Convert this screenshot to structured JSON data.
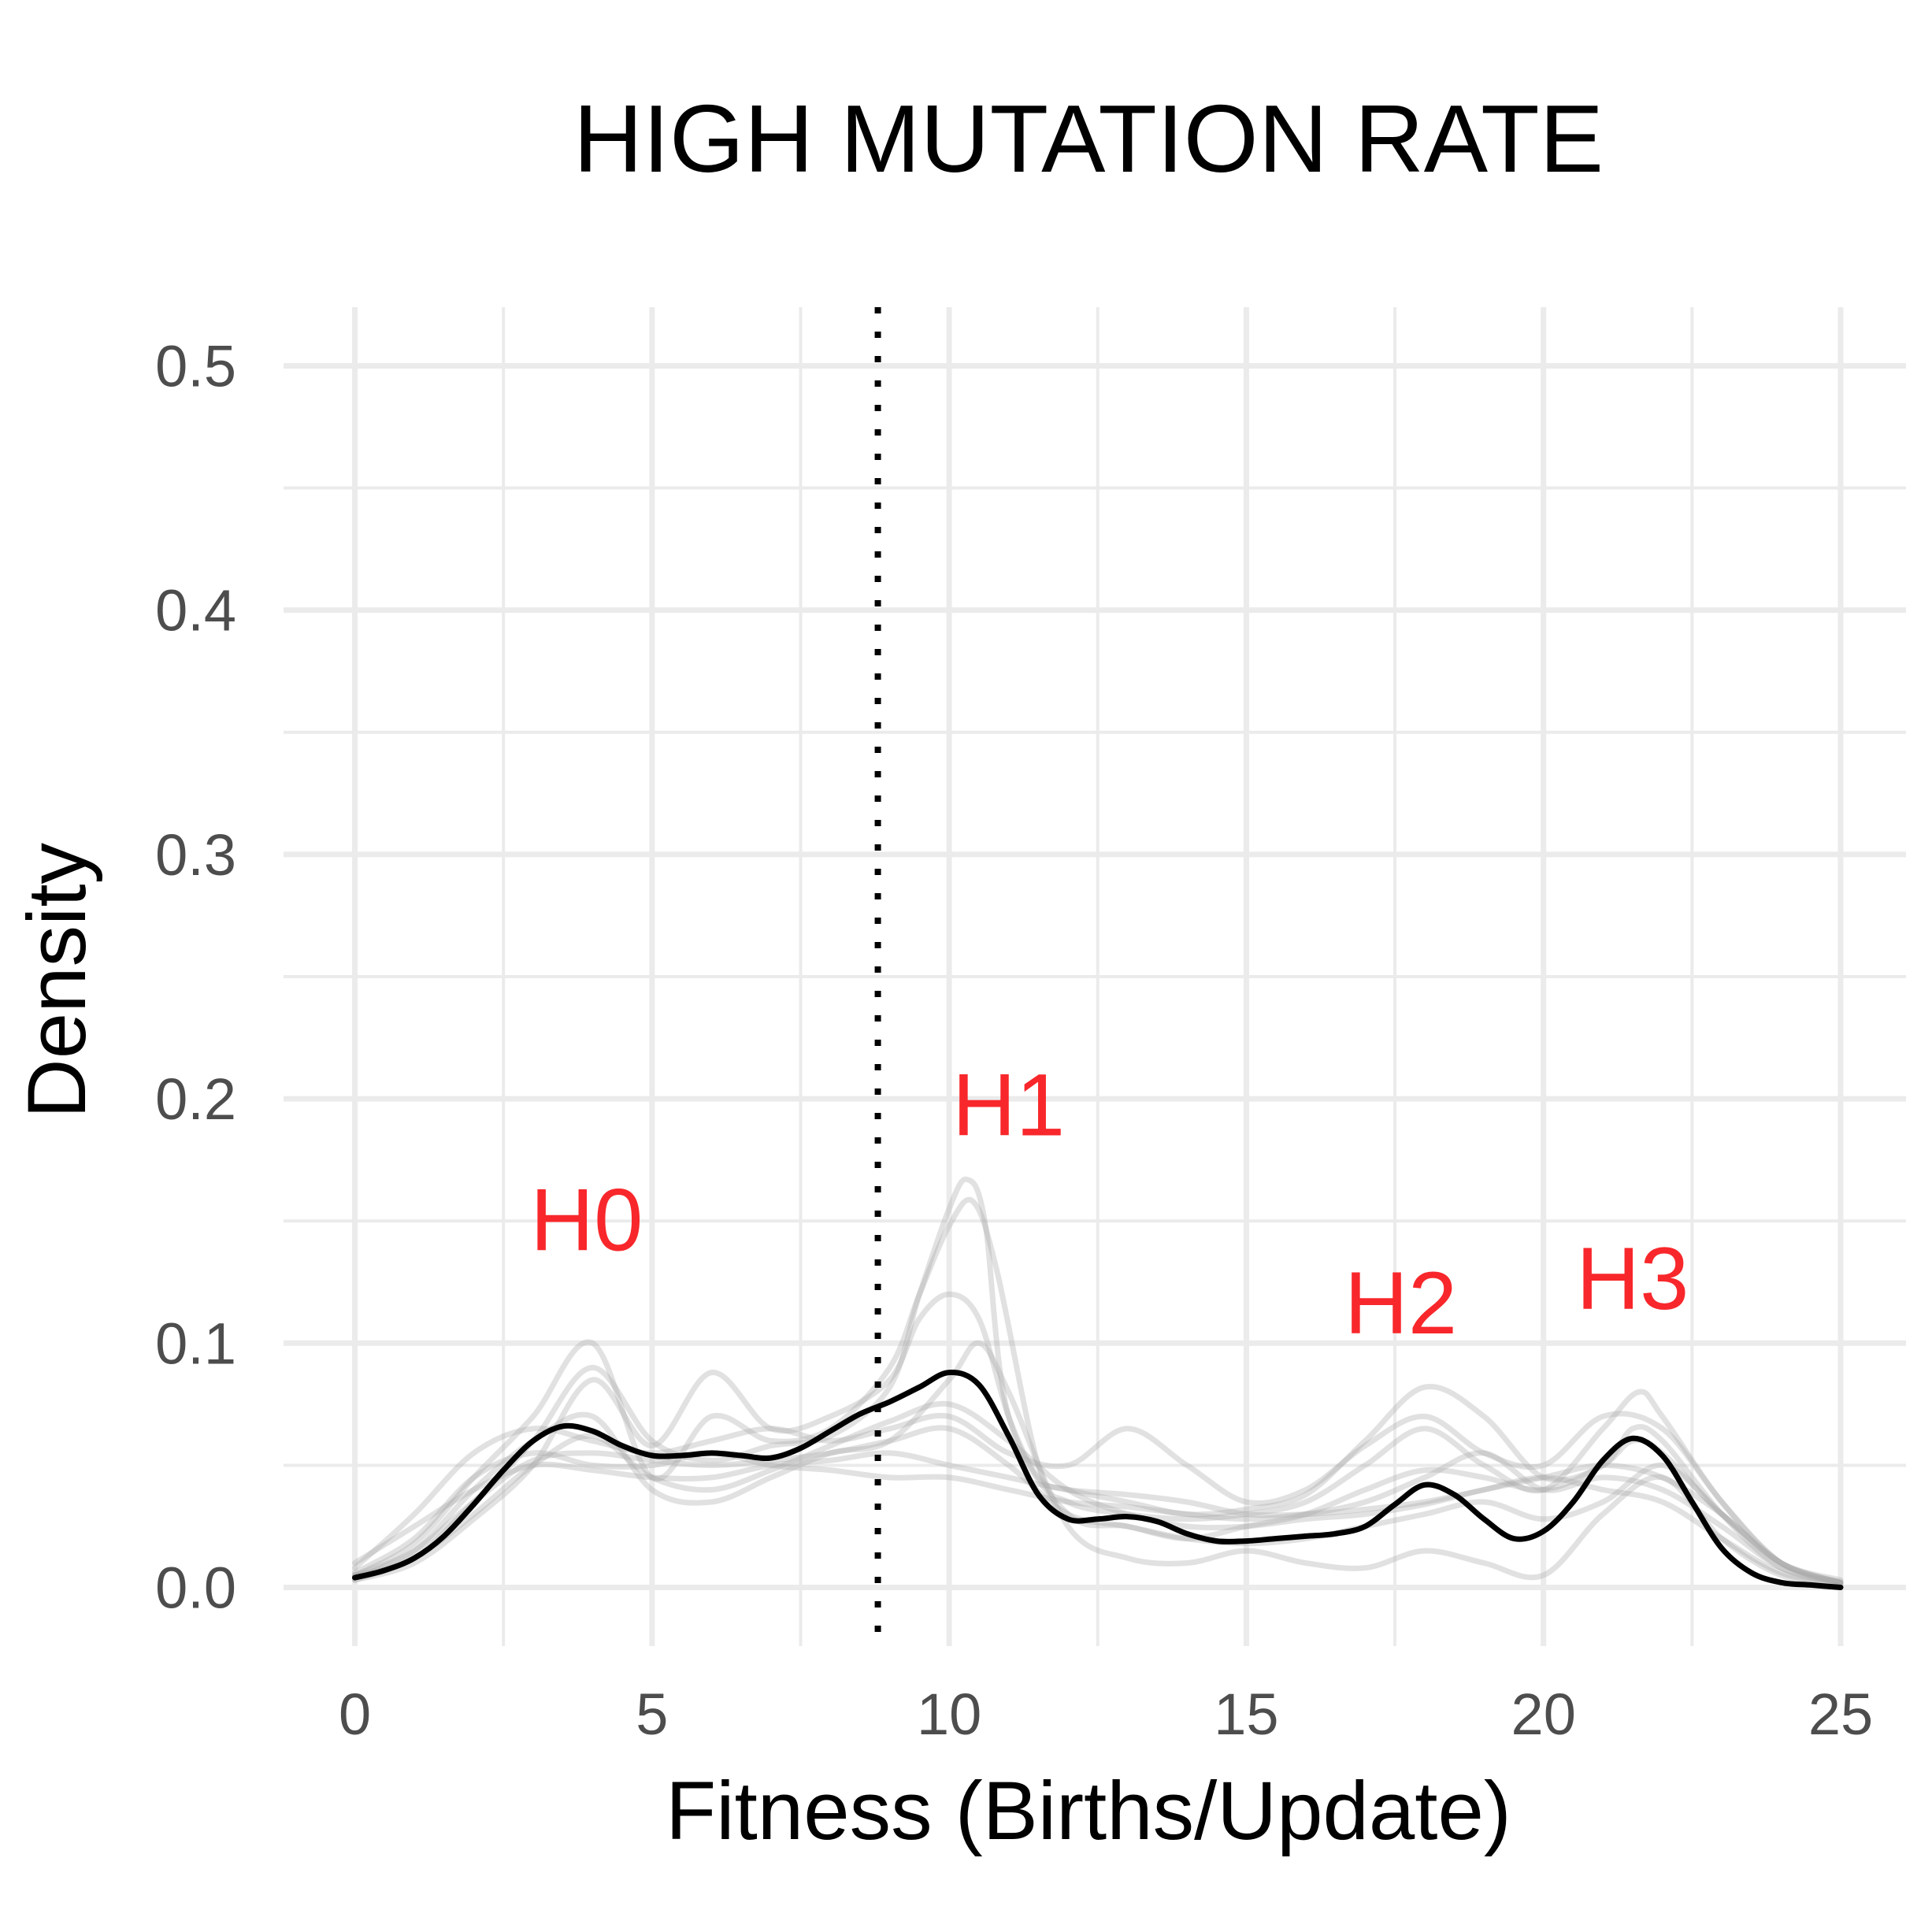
{
  "chart_data": {
    "type": "line",
    "title": "HIGH MUTATION RATE",
    "xlabel": "Fitness (Births/Update)",
    "ylabel": "Density",
    "xlim": [
      -1.2,
      26.1
    ],
    "ylim": [
      -0.024,
      0.524
    ],
    "x_ticks": [
      0,
      5,
      10,
      15,
      20,
      25
    ],
    "x_tick_labels": [
      "0",
      "5",
      "10",
      "15",
      "20",
      "25"
    ],
    "y_ticks": [
      0.0,
      0.1,
      0.2,
      0.3,
      0.4,
      0.5
    ],
    "y_tick_labels": [
      "0.0",
      "0.1",
      "0.2",
      "0.3",
      "0.4",
      "0.5"
    ],
    "grid": true,
    "legend": "none",
    "vline": {
      "x": 8.8,
      "style": "dotted",
      "color": "#000000"
    },
    "annotations": [
      {
        "text": "H0",
        "x": 3.9,
        "y": 0.138,
        "color": "#f8272b"
      },
      {
        "text": "H1",
        "x": 11.0,
        "y": 0.185,
        "color": "#f8272b"
      },
      {
        "text": "H2",
        "x": 17.6,
        "y": 0.104,
        "color": "#f8272b"
      },
      {
        "text": "H3",
        "x": 21.5,
        "y": 0.114,
        "color": "#f8272b"
      }
    ],
    "colors": {
      "mean": "#000000",
      "replicate": "#aaaaaa",
      "annotation": "#f8272b",
      "grid": "#ebebeb"
    },
    "mean_series": {
      "x": [
        0,
        0.5,
        1,
        1.5,
        2,
        2.5,
        3,
        3.5,
        4,
        4.5,
        5,
        5.5,
        6,
        6.5,
        7,
        7.5,
        8,
        8.5,
        9,
        9.5,
        10,
        10.5,
        11,
        11.5,
        12,
        12.5,
        13,
        13.5,
        14,
        14.5,
        15,
        15.5,
        16,
        16.5,
        17,
        17.5,
        18,
        18.5,
        19,
        19.5,
        20,
        20.5,
        21,
        21.5,
        22,
        22.5,
        23,
        23.5,
        24,
        24.5,
        25
      ],
      "y": [
        0.004,
        0.007,
        0.012,
        0.021,
        0.034,
        0.048,
        0.06,
        0.066,
        0.064,
        0.058,
        0.054,
        0.054,
        0.055,
        0.054,
        0.053,
        0.057,
        0.064,
        0.071,
        0.076,
        0.082,
        0.088,
        0.083,
        0.062,
        0.038,
        0.028,
        0.028,
        0.029,
        0.027,
        0.022,
        0.019,
        0.019,
        0.02,
        0.021,
        0.022,
        0.025,
        0.034,
        0.042,
        0.038,
        0.028,
        0.02,
        0.023,
        0.035,
        0.052,
        0.061,
        0.054,
        0.035,
        0.016,
        0.006,
        0.002,
        0.001,
        0.0
      ]
    },
    "replicate_series": [
      {
        "x": [
          0,
          1,
          2,
          3,
          4,
          5,
          6,
          7,
          8,
          9,
          9.5,
          10,
          10.3,
          10.6,
          11,
          12,
          13,
          14,
          15,
          16,
          17,
          18,
          19,
          20,
          21,
          21.5,
          22,
          23,
          24,
          25
        ],
        "y": [
          0.005,
          0.012,
          0.035,
          0.06,
          0.09,
          0.06,
          0.052,
          0.058,
          0.062,
          0.082,
          0.12,
          0.155,
          0.167,
          0.15,
          0.07,
          0.03,
          0.025,
          0.02,
          0.025,
          0.03,
          0.04,
          0.048,
          0.045,
          0.04,
          0.05,
          0.06,
          0.055,
          0.03,
          0.01,
          0.002
        ]
      },
      {
        "x": [
          0,
          1,
          2,
          3,
          4,
          5,
          6,
          7,
          8,
          9,
          9.5,
          10,
          10.4,
          10.8,
          11.5,
          12,
          13,
          14,
          15,
          16,
          17,
          18,
          19,
          20,
          21,
          21.6,
          22,
          23,
          24,
          25
        ],
        "y": [
          0.005,
          0.018,
          0.045,
          0.07,
          0.1,
          0.045,
          0.07,
          0.06,
          0.065,
          0.09,
          0.12,
          0.148,
          0.158,
          0.13,
          0.05,
          0.035,
          0.03,
          0.028,
          0.03,
          0.035,
          0.05,
          0.065,
          0.05,
          0.04,
          0.065,
          0.08,
          0.07,
          0.035,
          0.01,
          0.002
        ]
      },
      {
        "x": [
          0,
          1,
          2,
          3,
          4,
          5,
          6,
          7,
          8,
          9,
          9.5,
          10,
          10.5,
          11,
          11.5,
          12,
          13,
          14,
          15,
          16,
          17,
          18,
          19,
          20,
          21,
          21.5,
          22,
          23,
          24,
          25
        ],
        "y": [
          0.003,
          0.01,
          0.028,
          0.05,
          0.085,
          0.058,
          0.088,
          0.065,
          0.07,
          0.085,
          0.11,
          0.12,
          0.11,
          0.07,
          0.045,
          0.04,
          0.035,
          0.03,
          0.032,
          0.038,
          0.06,
          0.082,
          0.07,
          0.045,
          0.05,
          0.065,
          0.06,
          0.03,
          0.008,
          0.002
        ]
      },
      {
        "x": [
          0,
          1,
          2,
          3,
          4,
          5,
          6,
          7,
          8,
          9,
          10,
          11,
          12,
          13,
          14,
          15,
          16,
          17,
          18,
          19,
          20,
          21,
          22,
          23,
          24,
          25
        ],
        "y": [
          0.008,
          0.03,
          0.055,
          0.065,
          0.06,
          0.055,
          0.06,
          0.065,
          0.06,
          0.065,
          0.07,
          0.055,
          0.05,
          0.065,
          0.05,
          0.035,
          0.04,
          0.058,
          0.07,
          0.055,
          0.05,
          0.07,
          0.065,
          0.035,
          0.01,
          0.002
        ]
      },
      {
        "x": [
          0,
          1,
          2,
          3,
          4,
          5,
          6,
          7,
          8,
          9,
          10,
          11,
          12,
          13,
          14,
          15,
          16,
          17,
          18,
          19,
          20,
          21,
          22,
          23,
          24,
          25
        ],
        "y": [
          0.01,
          0.025,
          0.04,
          0.05,
          0.048,
          0.045,
          0.045,
          0.05,
          0.052,
          0.055,
          0.05,
          0.045,
          0.04,
          0.038,
          0.035,
          0.03,
          0.03,
          0.032,
          0.035,
          0.04,
          0.045,
          0.05,
          0.045,
          0.03,
          0.01,
          0.003
        ]
      },
      {
        "x": [
          0,
          1,
          2,
          3,
          4,
          5,
          6,
          7,
          8,
          9,
          10,
          10.5,
          11,
          12,
          13,
          14,
          15,
          16,
          17,
          18,
          19,
          20,
          21,
          22,
          23,
          24,
          25
        ],
        "y": [
          0.004,
          0.015,
          0.04,
          0.06,
          0.07,
          0.04,
          0.035,
          0.045,
          0.055,
          0.06,
          0.085,
          0.1,
          0.08,
          0.025,
          0.012,
          0.01,
          0.015,
          0.01,
          0.008,
          0.015,
          0.01,
          0.005,
          0.03,
          0.045,
          0.02,
          0.005,
          0.001
        ]
      },
      {
        "x": [
          0,
          1,
          2,
          3,
          4,
          5,
          6,
          7,
          8,
          9,
          10,
          11,
          12,
          13,
          14,
          15,
          16,
          17,
          18,
          19,
          20,
          21,
          22,
          23,
          24,
          25
        ],
        "y": [
          0.006,
          0.02,
          0.045,
          0.055,
          0.05,
          0.05,
          0.055,
          0.05,
          0.048,
          0.045,
          0.045,
          0.04,
          0.035,
          0.033,
          0.03,
          0.028,
          0.03,
          0.035,
          0.045,
          0.055,
          0.04,
          0.045,
          0.04,
          0.025,
          0.008,
          0.002
        ]
      },
      {
        "x": [
          0,
          1,
          2,
          3,
          4,
          5,
          6,
          7,
          8,
          9,
          10,
          11,
          12,
          13,
          14,
          15,
          16,
          17,
          18,
          19,
          20,
          21,
          22,
          23,
          24,
          25
        ],
        "y": [
          0.003,
          0.012,
          0.03,
          0.05,
          0.062,
          0.045,
          0.04,
          0.048,
          0.058,
          0.068,
          0.075,
          0.06,
          0.04,
          0.03,
          0.025,
          0.025,
          0.028,
          0.03,
          0.034,
          0.04,
          0.045,
          0.04,
          0.035,
          0.02,
          0.006,
          0.001
        ]
      },
      {
        "x": [
          0,
          1,
          2,
          3,
          4,
          5,
          6,
          7,
          8,
          9,
          10,
          11,
          12,
          13,
          14,
          15,
          16,
          17,
          18,
          19,
          20,
          21,
          22,
          23,
          24,
          25
        ],
        "y": [
          0.005,
          0.015,
          0.035,
          0.052,
          0.055,
          0.052,
          0.05,
          0.052,
          0.055,
          0.06,
          0.065,
          0.05,
          0.03,
          0.025,
          0.02,
          0.018,
          0.02,
          0.025,
          0.03,
          0.035,
          0.028,
          0.035,
          0.05,
          0.03,
          0.01,
          0.002
        ]
      }
    ]
  }
}
